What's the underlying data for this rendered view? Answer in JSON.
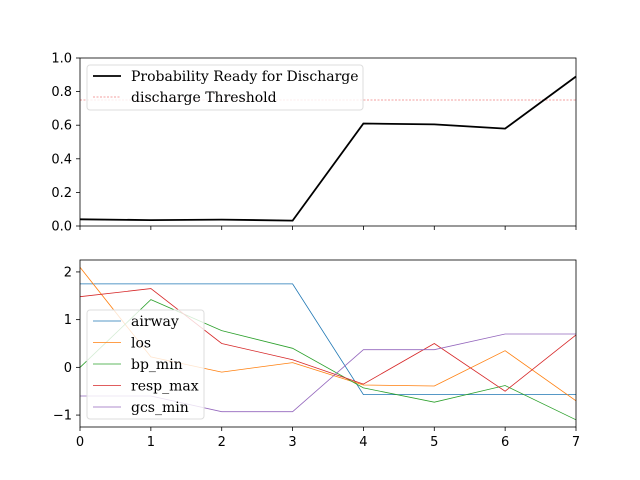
{
  "chart_data": [
    {
      "type": "line",
      "title": "",
      "xlabel": "",
      "ylabel": "",
      "x": [
        0,
        1,
        2,
        3,
        4,
        5,
        6,
        7
      ],
      "xlim": [
        0,
        7
      ],
      "ylim": [
        0,
        1.0
      ],
      "yticks": [
        "0.0",
        "0.2",
        "0.4",
        "0.6",
        "0.8",
        "1.0"
      ],
      "grid": false,
      "legend_position": "top-left",
      "series": [
        {
          "name": "Probability Ready for Discharge",
          "color": "#000000",
          "values": [
            0.04,
            0.035,
            0.038,
            0.032,
            0.61,
            0.605,
            0.58,
            0.89
          ]
        }
      ],
      "threshold": {
        "name": "discharge Threshold",
        "color": "#f08080",
        "value": 0.75
      }
    },
    {
      "type": "line",
      "title": "",
      "xlabel": "",
      "ylabel": "",
      "x": [
        0,
        1,
        2,
        3,
        4,
        5,
        6,
        7
      ],
      "xlim": [
        0,
        7
      ],
      "ylim": [
        -1.25,
        2.25
      ],
      "xticks": [
        "0",
        "1",
        "2",
        "3",
        "4",
        "5",
        "6",
        "7"
      ],
      "yticks": [
        "-1",
        "0",
        "1",
        "2"
      ],
      "grid": false,
      "legend_position": "bottom-left",
      "series": [
        {
          "name": "airway",
          "color": "#1f77b4",
          "values": [
            1.75,
            1.75,
            1.75,
            1.75,
            -0.57,
            -0.57,
            -0.57,
            -0.57
          ]
        },
        {
          "name": "los",
          "color": "#ff7f0e",
          "values": [
            2.1,
            0.22,
            -0.1,
            0.1,
            -0.37,
            -0.39,
            0.35,
            -0.7
          ]
        },
        {
          "name": "bp_min",
          "color": "#2ca02c",
          "values": [
            0.0,
            1.42,
            0.77,
            0.4,
            -0.43,
            -0.73,
            -0.38,
            -1.1
          ]
        },
        {
          "name": "resp_max",
          "color": "#d62728",
          "values": [
            1.48,
            1.65,
            0.5,
            0.16,
            -0.35,
            0.5,
            -0.5,
            0.68
          ]
        },
        {
          "name": "gcs_min",
          "color": "#9467bd",
          "values": [
            -0.6,
            -0.6,
            -0.93,
            -0.93,
            0.37,
            0.37,
            0.7,
            0.7
          ]
        }
      ]
    }
  ]
}
